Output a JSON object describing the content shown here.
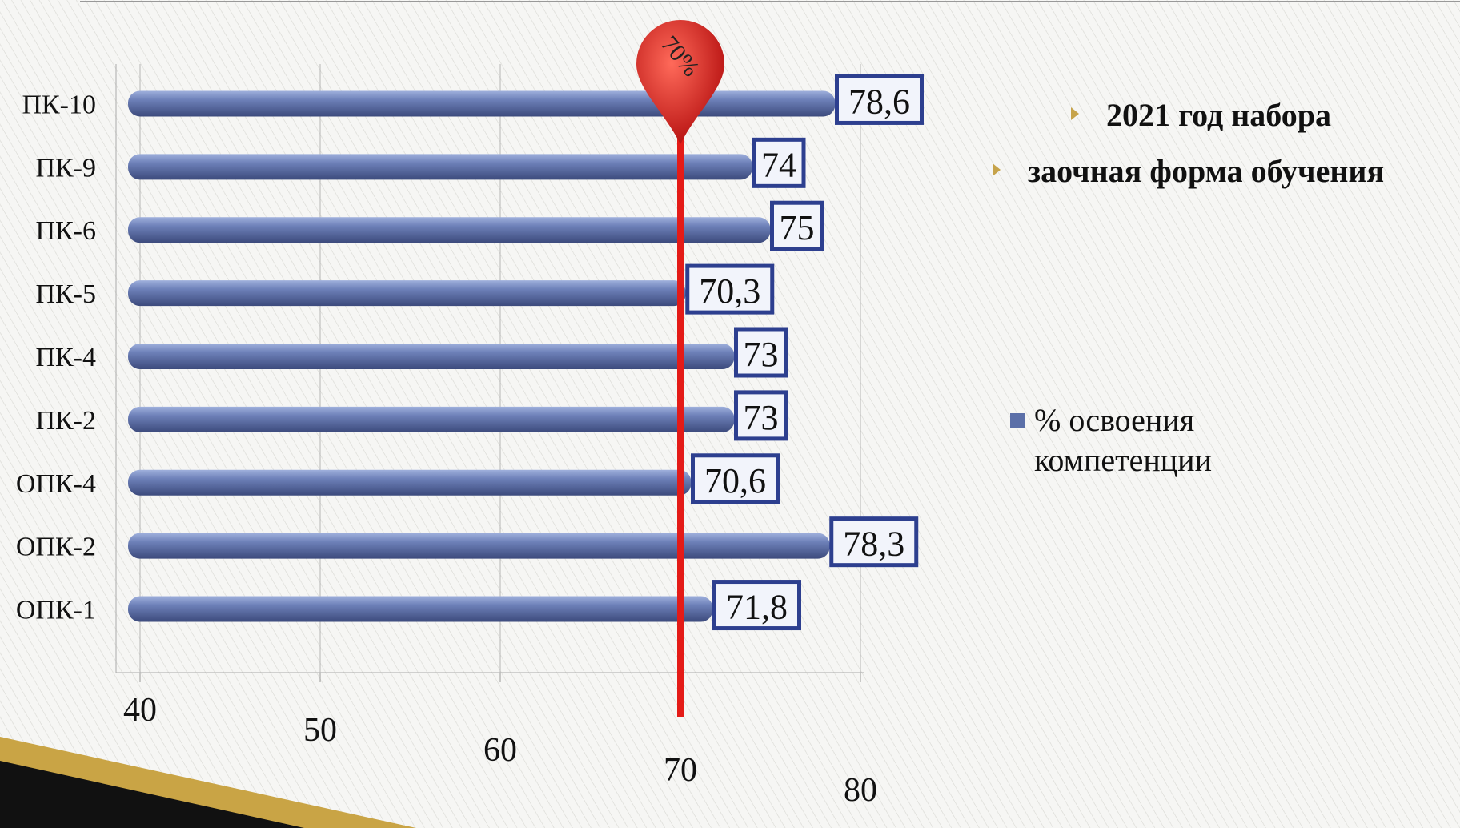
{
  "chart_data": {
    "type": "bar",
    "orientation": "horizontal",
    "categories": [
      "ПК-10",
      "ПК-9",
      "ПК-6",
      "ПК-5",
      "ПК-4",
      "ПК-2",
      "ОПК-4",
      "ОПК-2",
      "ОПК-1"
    ],
    "series": [
      {
        "name": "% освоения компетенции",
        "color": "#5b6fa8",
        "values": [
          78.6,
          74,
          75,
          70.3,
          73,
          73,
          70.6,
          78.3,
          71.8
        ],
        "value_labels": [
          "78,6",
          "74",
          "75",
          "70,3",
          "73",
          "73",
          "70,6",
          "78,3",
          "71,8"
        ]
      }
    ],
    "xlim": [
      40,
      80
    ],
    "xticks": [
      40,
      50,
      60,
      70,
      80
    ],
    "grid": true,
    "reference_line": {
      "value": 70,
      "label": "70%",
      "color": "#e41b17"
    },
    "bullets": [
      "2021 год набора",
      "заочная форма обучения"
    ],
    "legend": "right"
  }
}
